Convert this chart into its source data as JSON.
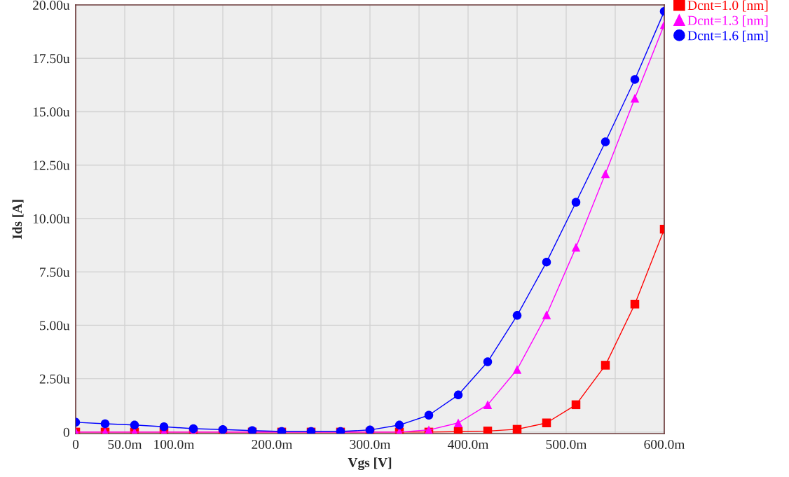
{
  "chart_data": {
    "type": "line",
    "xlabel": "Vgs [V]",
    "ylabel": "Ids [A]",
    "x": [
      0,
      30,
      60,
      90,
      120,
      150,
      180,
      210,
      240,
      270,
      300,
      330,
      360,
      390,
      420,
      450,
      480,
      510,
      540,
      570,
      600
    ],
    "series": [
      {
        "name": "Dcnt=1.0 [nm]",
        "color": "#ff0000",
        "marker": "square",
        "values": [
          0,
          0,
          0,
          0,
          0,
          0,
          0,
          0,
          0,
          0,
          0,
          0,
          0,
          0.02,
          0.05,
          0.13,
          0.43,
          1.28,
          3.13,
          5.99,
          9.5
        ]
      },
      {
        "name": "Dcnt=1.3 [nm]",
        "color": "#ff00ff",
        "marker": "triangle",
        "values": [
          0,
          0,
          0,
          0,
          0,
          0,
          0,
          0,
          0,
          0,
          0,
          0,
          0.1,
          0.43,
          1.28,
          2.93,
          5.49,
          8.65,
          12.1,
          15.63,
          19.08
        ]
      },
      {
        "name": "Dcnt=1.6 [nm]",
        "color": "#0000ff",
        "marker": "circle",
        "values": [
          0.46,
          0.39,
          0.33,
          0.25,
          0.16,
          0.12,
          0.07,
          0.03,
          0.03,
          0.03,
          0.1,
          0.33,
          0.79,
          1.74,
          3.29,
          5.46,
          7.96,
          10.76,
          13.59,
          16.51,
          19.7
        ]
      }
    ],
    "xlim": [
      0,
      600
    ],
    "xticks": [
      {
        "value": 0,
        "label": "0"
      },
      {
        "value": 50,
        "label": "50.0m"
      },
      {
        "value": 100,
        "label": "100.0m"
      },
      {
        "value": 150,
        "label": null
      },
      {
        "value": 200,
        "label": "200.0m"
      },
      {
        "value": 250,
        "label": null
      },
      {
        "value": 300,
        "label": "300.0m"
      },
      {
        "value": 350,
        "label": null
      },
      {
        "value": 400,
        "label": "400.0m"
      },
      {
        "value": 450,
        "label": null
      },
      {
        "value": 500,
        "label": "500.0m"
      },
      {
        "value": 550,
        "label": null
      },
      {
        "value": 600,
        "label": "600.0m"
      }
    ],
    "ylim": [
      -0.07,
      20.0
    ],
    "yticks": [
      {
        "value": 0,
        "label": "0"
      },
      {
        "value": 2.5,
        "label": "2.50u"
      },
      {
        "value": 5,
        "label": "5.00u"
      },
      {
        "value": 7.5,
        "label": "7.50u"
      },
      {
        "value": 10,
        "label": "10.00u"
      },
      {
        "value": 12.5,
        "label": "12.50u"
      },
      {
        "value": 15,
        "label": "15.00u"
      },
      {
        "value": 17.5,
        "label": "17.50u"
      },
      {
        "value": 20,
        "label": "20.00u"
      }
    ],
    "grid": true,
    "legend": "top right",
    "line_style": "solid"
  }
}
